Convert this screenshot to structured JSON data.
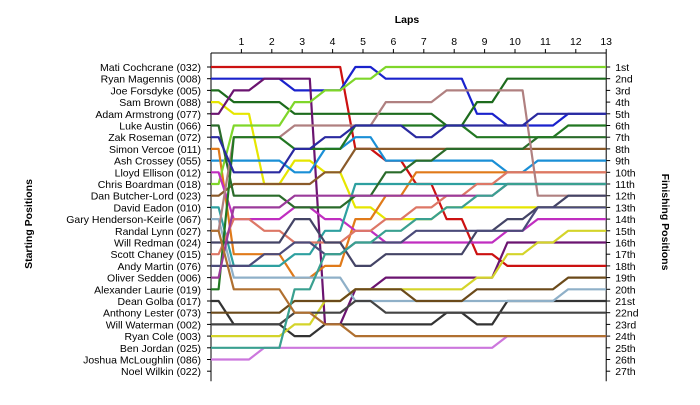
{
  "chart_data": {
    "type": "line",
    "title": "",
    "top_axis_title": "Laps",
    "left_axis_title": "Starting Positions",
    "right_axis_title": "Finishing Positions",
    "laps": [
      "1",
      "2",
      "3",
      "4",
      "5",
      "6",
      "7",
      "8",
      "9",
      "10",
      "11",
      "12",
      "13"
    ],
    "driver_labels": [
      "Mati Cochcrane (032)",
      "Ryan Magennis (008)",
      "Joe Forsdyke (005)",
      "Sam Brown (088)",
      "Adam Armstrong (077)",
      "Luke Austin (066)",
      "Zak Roseman (072)",
      "Simon Vercoe (011)",
      "Ash Crossey (055)",
      "Lloyd Ellison (012)",
      "Chris Boardman (018)",
      "Dan Butcher-Lord (023)",
      "David Eadon (010)",
      "Gary Henderson-Keirle (067)",
      "Randal Lynn (027)",
      "Will Redman (024)",
      "Scott Chaney (015)",
      "Andy Martin (076)",
      "Oliver Sedden (006)",
      "Alexander Laurie (019)",
      "Dean Golba (017)",
      "Anthony Lester (073)",
      "Will Waterman (002)",
      "Ryan Cole (003)",
      "Ben Jordan (025)",
      "Joshua McLoughlin (086)",
      "Noel Wilkin (022)"
    ],
    "finish_labels": [
      "1st",
      "2nd",
      "3rd",
      "4th",
      "5th",
      "6th",
      "7th",
      "8th",
      "9th",
      "10th",
      "11th",
      "12th",
      "13th",
      "14th",
      "15th",
      "16th",
      "17th",
      "18th",
      "19th",
      "20th",
      "21st",
      "22nd",
      "23rd",
      "24th",
      "25th",
      "26th",
      "27th"
    ],
    "series": [
      {
        "color": "#cc1111",
        "values": [
          1,
          1,
          1,
          1,
          1,
          8,
          9,
          11,
          14,
          17,
          18,
          18,
          18,
          18
        ]
      },
      {
        "color": "#1a22cc",
        "values": [
          2,
          2,
          2,
          3,
          3,
          1,
          2,
          2,
          2,
          5,
          6,
          6,
          5,
          5
        ]
      },
      {
        "color": "#1d6b1d",
        "values": [
          3,
          4,
          4,
          5,
          5,
          5,
          5,
          5,
          6,
          4,
          2,
          2,
          2,
          2
        ]
      },
      {
        "color": "#e6e600",
        "values": [
          4,
          5,
          11,
          9,
          10,
          13,
          14,
          14,
          13,
          13,
          13,
          13,
          13,
          13
        ]
      },
      {
        "color": "#6b1470",
        "values": [
          5,
          3,
          2,
          2,
          23,
          20,
          19,
          19,
          19,
          19,
          16,
          16,
          16,
          16
        ]
      },
      {
        "color": "#1a8fd6",
        "values": [
          9,
          9,
          9,
          10,
          8,
          7,
          9,
          9,
          9,
          9,
          10,
          9,
          9,
          9
        ]
      },
      {
        "color": "#333333",
        "values": [
          21,
          23,
          23,
          24,
          23,
          23,
          23,
          23,
          22,
          23,
          21,
          21,
          21,
          21
        ]
      },
      {
        "color": "#e07a1a",
        "values": [
          8,
          17,
          17,
          19,
          18,
          14,
          12,
          10,
          10,
          10,
          10,
          10,
          10,
          10
        ]
      },
      {
        "color": "#7fd62a",
        "values": [
          11,
          6,
          6,
          4,
          3,
          2,
          1,
          1,
          1,
          1,
          1,
          1,
          1,
          1
        ]
      },
      {
        "color": "#c02ec0",
        "values": [
          10,
          14,
          14,
          13,
          14,
          15,
          16,
          16,
          16,
          16,
          15,
          14,
          14,
          14
        ]
      },
      {
        "color": "#8fb0c8",
        "values": [
          14,
          19,
          19,
          19,
          19,
          21,
          21,
          21,
          21,
          21,
          21,
          21,
          20,
          20
        ]
      },
      {
        "color": "#8a5a2a",
        "values": [
          12,
          11,
          11,
          11,
          10,
          8,
          8,
          8,
          8,
          8,
          8,
          8,
          8,
          8
        ]
      },
      {
        "color": "#2ea0a0",
        "values": [
          13,
          18,
          18,
          17,
          15,
          11,
          11,
          11,
          11,
          11,
          11,
          11,
          11,
          11
        ]
      },
      {
        "color": "#2a6b2a",
        "values": [
          6,
          12,
          12,
          13,
          13,
          12,
          10,
          9,
          8,
          8,
          8,
          7,
          7,
          7
        ]
      },
      {
        "color": "#dd7766",
        "values": [
          17,
          14,
          15,
          16,
          16,
          15,
          14,
          13,
          12,
          11,
          10,
          10,
          10,
          10
        ]
      },
      {
        "color": "#b08080",
        "values": [
          15,
          7,
          7,
          6,
          6,
          6,
          4,
          4,
          3,
          3,
          3,
          12,
          12,
          12
        ]
      },
      {
        "color": "#444466",
        "values": [
          16,
          16,
          16,
          14,
          16,
          18,
          17,
          17,
          17,
          15,
          14,
          13,
          12,
          12
        ]
      },
      {
        "color": "#4b4b7a",
        "values": [
          18,
          18,
          17,
          16,
          17,
          16,
          16,
          15,
          15,
          15,
          15,
          13,
          13,
          13
        ]
      },
      {
        "color": "#d4d42a",
        "values": [
          24,
          24,
          24,
          23,
          21,
          20,
          20,
          20,
          20,
          19,
          17,
          16,
          15,
          15
        ]
      },
      {
        "color": "#cc77dd",
        "values": [
          26,
          26,
          25,
          25,
          25,
          25,
          25,
          25,
          25,
          25,
          24,
          24,
          24,
          24
        ]
      },
      {
        "color": "#227722",
        "values": [
          20,
          7,
          7,
          8,
          8,
          6,
          6,
          6,
          6,
          7,
          7,
          7,
          6,
          6
        ]
      },
      {
        "color": "#9b3b9b",
        "values": [
          19,
          13,
          13,
          12,
          12,
          12,
          12,
          12,
          12,
          12,
          11,
          11,
          11,
          11
        ]
      },
      {
        "color": "#2a2aa0",
        "values": [
          7,
          10,
          10,
          8,
          7,
          6,
          6,
          7,
          6,
          6,
          6,
          5,
          5,
          5
        ]
      },
      {
        "color": "#6b4a1a",
        "values": [
          22,
          22,
          22,
          21,
          21,
          20,
          20,
          21,
          21,
          20,
          20,
          20,
          19,
          19
        ]
      },
      {
        "color": "#444444",
        "values": [
          23,
          23,
          23,
          22,
          22,
          21,
          22,
          22,
          22,
          22,
          22,
          22,
          22,
          22
        ]
      },
      {
        "color": "#3aa090",
        "values": [
          25,
          25,
          25,
          20,
          17,
          16,
          15,
          14,
          13,
          12,
          11,
          11,
          11,
          11
        ]
      },
      {
        "color": "#b07030",
        "values": [
          15,
          20,
          20,
          22,
          23,
          24,
          24,
          24,
          24,
          24,
          24,
          24,
          24,
          24
        ]
      }
    ]
  }
}
